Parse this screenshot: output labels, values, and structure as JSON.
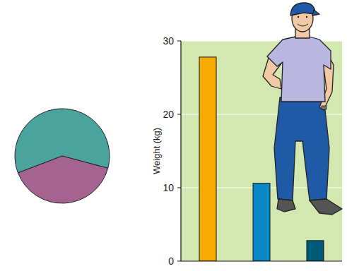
{
  "chart_data": [
    {
      "type": "pie",
      "values": [
        60,
        40
      ],
      "colors": [
        "#4aa39c",
        "#a5638f"
      ]
    },
    {
      "type": "bar",
      "ylabel": "Weight (kg)",
      "categories": [
        null,
        null,
        null
      ],
      "values": [
        27.8,
        10.6,
        2.8
      ],
      "colors": [
        "#f7aa00",
        "#0a88c8",
        "#005b7a"
      ],
      "ylim": [
        0,
        30
      ],
      "yticks": [
        0,
        10,
        20,
        30
      ],
      "grid": true,
      "tick_labels": "y"
    }
  ]
}
